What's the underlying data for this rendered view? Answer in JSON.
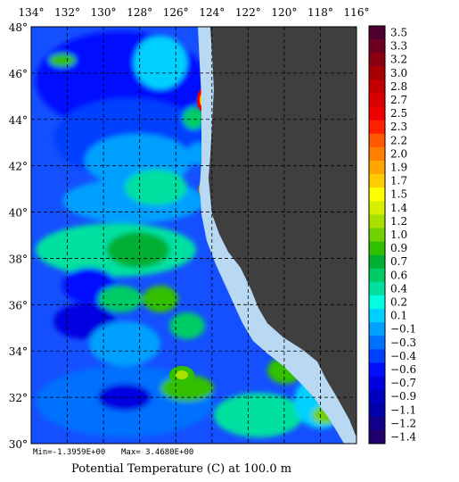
{
  "map": {
    "title": "Potential Temperature (C) at 100.0 m",
    "min_label": "Min=-1.3959E+00",
    "max_label": "Max= 3.4680E+00",
    "longitude_labels": [
      "134°",
      "132°",
      "130°",
      "128°",
      "126°",
      "124°",
      "122°",
      "120°",
      "118°",
      "116°"
    ],
    "latitude_labels": [
      "48°",
      "46°",
      "44°",
      "42°",
      "40°",
      "38°",
      "36°",
      "34°",
      "32°",
      "30°"
    ],
    "land_color": "#3f3f3f",
    "coast_color": "#b9d9f2"
  },
  "colorbar": {
    "labels": [
      "3.5",
      "3.3",
      "3.2",
      "3.0",
      "2.8",
      "2.7",
      "2.5",
      "2.3",
      "2.2",
      "2.0",
      "1.9",
      "1.7",
      "1.5",
      "1.4",
      "1.2",
      "1.0",
      "0.9",
      "0.7",
      "0.6",
      "0.4",
      "0.2",
      "0.1",
      "−0.1",
      "−0.3",
      "−0.4",
      "−0.6",
      "−0.7",
      "−0.9",
      "−1.1",
      "−1.2",
      "−1.4"
    ],
    "colors": [
      "#4d0030",
      "#6b0020",
      "#8a0010",
      "#a60000",
      "#c20000",
      "#d80000",
      "#ee0000",
      "#ff2000",
      "#ff5a00",
      "#ff8000",
      "#ffa600",
      "#ffcc00",
      "#ffff00",
      "#d8f000",
      "#a8e000",
      "#70d000",
      "#30c000",
      "#00b030",
      "#00cc66",
      "#00e0a0",
      "#00ffe0",
      "#00d0ff",
      "#00a0ff",
      "#0070ff",
      "#0040ff",
      "#0010ff",
      "#0000e0",
      "#0000c0",
      "#0000a8",
      "#10008a",
      "#20006a"
    ]
  }
}
